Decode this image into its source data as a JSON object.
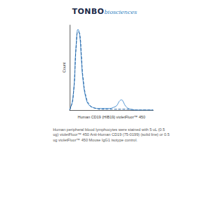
{
  "chart_data": {
    "type": "line",
    "x_label": "Human CD19 (HIB19) violetFluor™ 450",
    "y_label": "Count",
    "x": [
      0,
      4,
      8,
      10,
      12,
      14,
      16,
      20,
      24,
      28,
      32,
      36,
      40,
      44,
      48,
      52,
      56,
      58,
      60,
      62,
      64,
      66,
      70,
      74,
      80,
      90,
      100
    ],
    "series": [
      {
        "color": "#4a90d0",
        "line_style": "solid",
        "values": [
          0,
          15,
          80,
          95,
          88,
          60,
          35,
          12,
          5,
          3,
          2,
          2,
          2,
          2,
          2,
          3,
          5,
          8,
          11,
          12,
          10,
          6,
          2,
          1,
          0,
          0,
          0
        ]
      },
      {
        "color": "#1f5fa0",
        "line_style": "dashed",
        "values": [
          0,
          14,
          78,
          92,
          90,
          65,
          38,
          14,
          6,
          3,
          2,
          1,
          1,
          1,
          1,
          1,
          1,
          1,
          1,
          1,
          1,
          1,
          1,
          0,
          0,
          0,
          0
        ]
      }
    ],
    "xlim": [
      0,
      100
    ],
    "ylim": [
      0,
      100
    ],
    "grid": false,
    "tick_labels": false
  },
  "logo": {
    "text": "TONBO",
    "subtext": "biosciences"
  },
  "caption": "Human peripheral blood lymphocytes were stained with 5 uL (0.5 ug) violetFluor™ 450 Anti-Human CD19 (75-0199) (solid line) or 0.5 ug violetFluor™ 450 Mouse IgG1 isotype control."
}
